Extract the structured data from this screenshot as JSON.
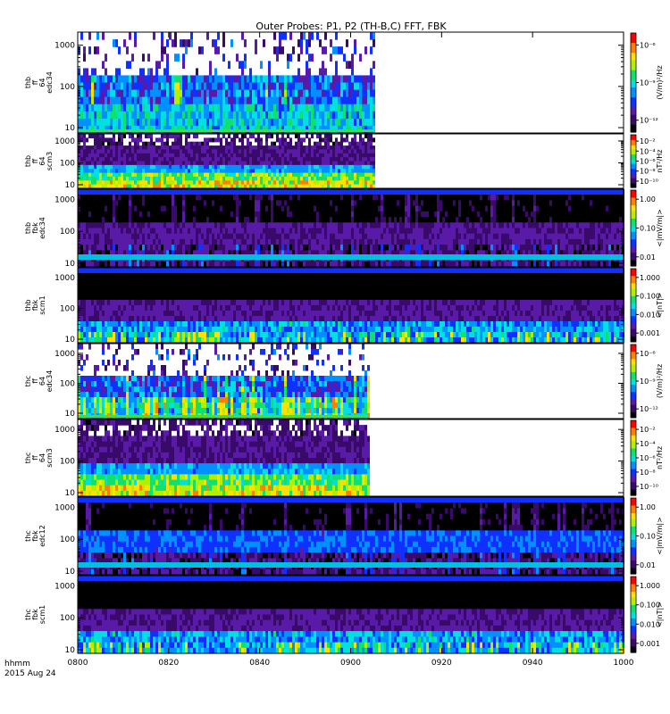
{
  "title": "Outer Probes: P1, P2 (TH-B,C) FFT, FBK",
  "footer": {
    "time_label": "hhmm",
    "date_label": "2015 Aug 24"
  },
  "chart_data": {
    "type": "heatmap",
    "title": "Outer Probes: P1, P2 (TH-B,C) FFT, FBK",
    "x_ticks": [
      "0800",
      "0820",
      "0840",
      "0900",
      "0920",
      "0940",
      "1000"
    ],
    "x_range": [
      "0800",
      "1000"
    ],
    "panels": [
      {
        "label_lines": [
          "thb",
          "ff",
          "64",
          "edc34"
        ],
        "y_ticks": [
          "10",
          "100",
          "1000"
        ],
        "y_scale": "log",
        "colorbar_unit": "(V/m)²/Hz",
        "colorbar_ticks": [
          "10⁻⁶",
          "10⁻⁹",
          "10⁻¹²"
        ],
        "kind": "fft_e",
        "data_end": "0905"
      },
      {
        "label_lines": [
          "thb",
          "ff",
          "64",
          "scm3"
        ],
        "y_ticks": [
          "10",
          "100",
          "1000"
        ],
        "y_scale": "log",
        "colorbar_unit": "nT²/Hz",
        "colorbar_ticks": [
          "10⁻²",
          "10⁻⁴",
          "10⁻⁶",
          "10⁻⁸",
          "10⁻¹⁰"
        ],
        "kind": "fft_b",
        "data_end": "0905"
      },
      {
        "label_lines": [
          "thb",
          "fbk",
          "edc34"
        ],
        "y_ticks": [
          "10",
          "100",
          "1000"
        ],
        "y_scale": "log",
        "colorbar_unit": "<|mV/m|>",
        "colorbar_ticks": [
          "1.00",
          "0.10",
          "0.01"
        ],
        "kind": "fbk_e",
        "data_end": "1000"
      },
      {
        "label_lines": [
          "thb",
          "fbk",
          "scm1"
        ],
        "y_ticks": [
          "10",
          "100",
          "1000"
        ],
        "y_scale": "log",
        "colorbar_unit": "<|nT|>",
        "colorbar_ticks": [
          "1.000",
          "0.100",
          "0.010",
          "0.001"
        ],
        "kind": "fbk_b",
        "data_end": "1000"
      },
      {
        "label_lines": [
          "thc",
          "ff",
          "64",
          "edc34"
        ],
        "y_ticks": [
          "10",
          "100",
          "1000"
        ],
        "y_scale": "log",
        "colorbar_unit": "(V/m)²/Hz",
        "colorbar_ticks": [
          "10⁻⁶",
          "10⁻⁹",
          "10⁻¹²"
        ],
        "kind": "fft_e2",
        "data_end": "0904"
      },
      {
        "label_lines": [
          "thc",
          "ff",
          "64",
          "scm3"
        ],
        "y_ticks": [
          "10",
          "100",
          "1000"
        ],
        "y_scale": "log",
        "colorbar_unit": "nT²/Hz",
        "colorbar_ticks": [
          "10⁻²",
          "10⁻⁴",
          "10⁻⁶",
          "10⁻⁸",
          "10⁻¹⁰"
        ],
        "kind": "fft_b",
        "data_end": "0904"
      },
      {
        "label_lines": [
          "thc",
          "fbk",
          "edc12"
        ],
        "y_ticks": [
          "10",
          "100",
          "1000"
        ],
        "y_scale": "log",
        "colorbar_unit": "<|mV/m|>",
        "colorbar_ticks": [
          "1.00",
          "0.10",
          "0.01"
        ],
        "kind": "fbk_e2",
        "data_end": "1000"
      },
      {
        "label_lines": [
          "thc",
          "fbk",
          "scm1"
        ],
        "y_ticks": [
          "10",
          "100",
          "1000"
        ],
        "y_scale": "log",
        "colorbar_unit": "<|nT|>",
        "colorbar_ticks": [
          "1.000",
          "0.100",
          "0.010",
          "0.001"
        ],
        "kind": "fbk_b",
        "data_end": "1000"
      }
    ],
    "colormap": [
      "#000000",
      "#3a0a6b",
      "#5a1aa8",
      "#1030ff",
      "#0090ff",
      "#00e0e0",
      "#10e070",
      "#b0f000",
      "#ffe000",
      "#ff8000",
      "#ff0000"
    ]
  }
}
